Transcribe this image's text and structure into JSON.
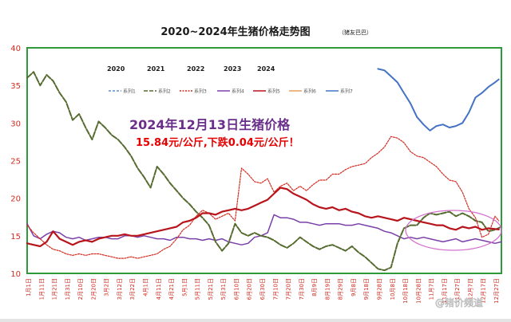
{
  "title": "2020~2024年生猪价格走势图",
  "subtitle": "（猪友巴巴）",
  "headline": "2024年12月13日生猪价格",
  "price_text": "15.84元/公斤,下跌0.04元/公斤！",
  "watermark": "@猪价频道",
  "colors": {
    "series1": "#5b8fd1",
    "series2": "#556b2f",
    "series3": "#d42a1f",
    "series4": "#7a40a8",
    "series5": "#b8141b",
    "series6": "#e8a15a",
    "series7": "#4472c4",
    "axis_border": "#2f9a3a",
    "headline": "#6a2f8a",
    "price_text": "#e60000",
    "ellipse": "#d470cf"
  },
  "chart_data": {
    "type": "line",
    "title": "2020~2024年生猪价格走势图",
    "ylim": [
      10,
      40
    ],
    "yticks": [
      10,
      15,
      20,
      25,
      30,
      35,
      40
    ],
    "grid": false,
    "year_labels": [
      "2020",
      "2021",
      "2022",
      "2023",
      "2024"
    ],
    "x_tick_labels": [
      "1月1日",
      "1月11日",
      "1月21日",
      "1月31日",
      "2月10日",
      "2月20日",
      "3月2日",
      "3月12日",
      "3月22日",
      "4月1日",
      "4月11日",
      "4月21日",
      "5月1日",
      "5月11日",
      "5月21日",
      "5月31日",
      "6月10日",
      "6月20日",
      "6月30日",
      "7月10日",
      "7月20日",
      "7月30日",
      "8月9日",
      "8月19日",
      "8月29日",
      "9月8日",
      "9月18日",
      "9月28日",
      "10月8日",
      "10月18日",
      "10月28日",
      "11月7日",
      "11月17日",
      "11月27日",
      "12月7日",
      "12月17日",
      "12月27日"
    ],
    "legend": [
      "系列1",
      "系列2",
      "系列3",
      "系列4",
      "系列5",
      "系列6",
      "系列7"
    ],
    "series": [
      {
        "name": "系列7",
        "x": [
          270,
          275,
          280,
          285,
          290,
          295,
          300,
          305,
          310,
          315,
          320,
          325,
          330,
          335,
          340,
          345,
          350,
          355,
          360,
          363
        ],
        "values": [
          37.2,
          37.0,
          36.2,
          35.4,
          34.0,
          32.6,
          30.8,
          29.8,
          29.0,
          29.6,
          29.8,
          29.4,
          29.6,
          30.0,
          31.4,
          33.4,
          34.0,
          34.8,
          35.4,
          35.8
        ]
      },
      {
        "name": "系列2",
        "x": [
          0,
          5,
          10,
          15,
          20,
          25,
          30,
          35,
          40,
          45,
          50,
          55,
          60,
          65,
          70,
          75,
          80,
          85,
          90,
          95,
          100,
          105,
          110,
          115,
          120,
          125,
          130,
          135,
          140,
          145,
          150,
          155,
          160,
          165,
          170,
          175,
          180,
          185,
          190,
          195,
          200,
          205,
          210,
          215,
          220,
          225,
          230,
          235,
          240,
          245,
          250,
          255,
          260,
          265,
          270,
          275,
          280,
          285,
          290,
          295,
          300,
          305,
          310,
          315,
          320,
          325,
          330,
          335,
          340,
          345,
          350,
          355,
          360,
          365
        ],
        "values": [
          36.0,
          36.8,
          35.0,
          36.4,
          35.6,
          34.0,
          32.8,
          30.4,
          31.2,
          29.4,
          27.8,
          30.2,
          29.4,
          28.4,
          27.8,
          26.8,
          25.6,
          24.0,
          22.8,
          21.4,
          24.2,
          23.2,
          22.0,
          21.0,
          20.0,
          19.2,
          18.2,
          17.4,
          16.4,
          14.2,
          13.0,
          14.0,
          16.6,
          15.4,
          15.0,
          15.4,
          15.0,
          14.8,
          14.4,
          13.8,
          13.4,
          14.0,
          14.8,
          14.2,
          13.6,
          13.2,
          13.6,
          13.8,
          13.4,
          13.0,
          13.6,
          12.8,
          12.2,
          11.4,
          10.6,
          10.4,
          10.8,
          14.0,
          16.0,
          16.4,
          16.4,
          17.4,
          18.0,
          17.8,
          18.0,
          18.2,
          17.6,
          18.0,
          17.6,
          17.0,
          16.8,
          15.6,
          15.8,
          16.2
        ]
      },
      {
        "name": "系列3",
        "x": [
          0,
          5,
          10,
          15,
          20,
          25,
          30,
          35,
          40,
          45,
          50,
          55,
          60,
          65,
          70,
          75,
          80,
          85,
          90,
          95,
          100,
          105,
          110,
          115,
          120,
          125,
          130,
          135,
          140,
          145,
          150,
          155,
          160,
          165,
          170,
          175,
          180,
          185,
          190,
          195,
          200,
          205,
          210,
          215,
          220,
          225,
          230,
          235,
          240,
          245,
          250,
          255,
          260,
          265,
          270,
          275,
          280,
          285,
          290,
          295,
          300,
          305,
          310,
          315,
          320,
          325,
          330,
          335,
          340,
          345,
          350,
          355,
          360,
          363
        ],
        "values": [
          16.4,
          15.4,
          14.6,
          13.8,
          13.2,
          13.0,
          12.6,
          12.4,
          12.6,
          12.4,
          12.6,
          12.6,
          12.4,
          12.2,
          12.0,
          12.0,
          12.2,
          12.0,
          12.2,
          12.4,
          12.6,
          13.2,
          13.6,
          14.6,
          15.8,
          16.4,
          17.6,
          18.4,
          18.0,
          17.2,
          17.6,
          18.0,
          17.0,
          24.0,
          23.2,
          22.2,
          22.0,
          22.6,
          20.8,
          21.6,
          22.0,
          21.0,
          21.6,
          21.0,
          21.8,
          22.4,
          22.4,
          23.2,
          23.2,
          23.8,
          24.2,
          24.4,
          24.6,
          25.4,
          26.0,
          26.8,
          28.2,
          28.0,
          27.4,
          26.2,
          25.6,
          25.4,
          24.8,
          24.2,
          23.2,
          22.4,
          22.2,
          20.8,
          18.6,
          17.4,
          14.8,
          15.2,
          17.6,
          17.0
        ]
      },
      {
        "name": "系列4",
        "x": [
          0,
          5,
          10,
          15,
          20,
          25,
          30,
          35,
          40,
          45,
          50,
          55,
          60,
          65,
          70,
          75,
          80,
          85,
          90,
          95,
          100,
          105,
          110,
          115,
          120,
          125,
          130,
          135,
          140,
          145,
          150,
          155,
          160,
          165,
          170,
          175,
          180,
          185,
          190,
          195,
          200,
          205,
          210,
          215,
          220,
          225,
          230,
          235,
          240,
          245,
          250,
          255,
          260,
          265,
          270,
          275,
          280,
          285,
          290,
          295,
          300,
          305,
          310,
          315,
          320,
          325,
          330,
          335,
          340,
          345,
          350,
          355,
          360,
          365
        ],
        "values": [
          16.6,
          15.0,
          14.6,
          15.2,
          15.6,
          15.4,
          14.8,
          14.6,
          14.8,
          14.4,
          14.6,
          14.8,
          14.8,
          14.6,
          14.6,
          15.0,
          15.0,
          14.8,
          15.0,
          14.8,
          14.6,
          14.6,
          14.4,
          14.8,
          14.8,
          14.6,
          14.6,
          14.4,
          14.6,
          14.4,
          14.6,
          14.2,
          14.0,
          13.8,
          14.0,
          14.8,
          15.0,
          15.4,
          17.8,
          17.4,
          17.4,
          17.2,
          16.8,
          16.8,
          16.6,
          16.4,
          16.6,
          16.6,
          16.6,
          16.4,
          16.4,
          16.6,
          16.4,
          16.2,
          16.0,
          15.6,
          15.4,
          15.0,
          14.6,
          14.8,
          14.6,
          14.8,
          14.6,
          14.4,
          14.2,
          14.4,
          14.6,
          14.2,
          14.4,
          14.6,
          14.4,
          14.2,
          14.0,
          14.2
        ]
      },
      {
        "name": "系列5",
        "x": [
          0,
          5,
          10,
          15,
          20,
          25,
          30,
          35,
          40,
          45,
          50,
          55,
          60,
          65,
          70,
          75,
          80,
          85,
          90,
          95,
          100,
          105,
          110,
          115,
          120,
          125,
          130,
          135,
          140,
          145,
          150,
          155,
          160,
          165,
          170,
          175,
          180,
          185,
          190,
          195,
          200,
          205,
          210,
          215,
          220,
          225,
          230,
          235,
          240,
          245,
          250,
          255,
          260,
          265,
          270,
          275,
          280,
          285,
          290,
          295,
          300,
          305,
          310,
          315,
          320,
          325,
          330,
          335,
          340,
          345,
          350,
          355,
          360,
          363
        ],
        "values": [
          14.0,
          13.8,
          13.6,
          14.2,
          15.6,
          14.6,
          14.2,
          13.8,
          14.2,
          14.4,
          14.2,
          14.6,
          14.8,
          15.0,
          15.0,
          15.2,
          15.0,
          15.0,
          15.2,
          15.4,
          15.6,
          15.8,
          16.0,
          16.2,
          16.8,
          17.0,
          17.4,
          18.0,
          18.0,
          17.8,
          18.2,
          18.4,
          18.6,
          18.4,
          18.6,
          19.0,
          19.4,
          19.8,
          20.6,
          21.4,
          21.2,
          20.6,
          20.2,
          19.8,
          19.2,
          18.8,
          18.6,
          18.8,
          18.4,
          18.6,
          18.2,
          18.0,
          17.6,
          17.4,
          17.6,
          17.4,
          17.2,
          17.0,
          17.4,
          17.2,
          17.0,
          16.8,
          16.6,
          16.4,
          16.4,
          16.0,
          15.8,
          16.2,
          16.0,
          16.2,
          15.8,
          16.0,
          15.9,
          15.84
        ]
      }
    ]
  }
}
